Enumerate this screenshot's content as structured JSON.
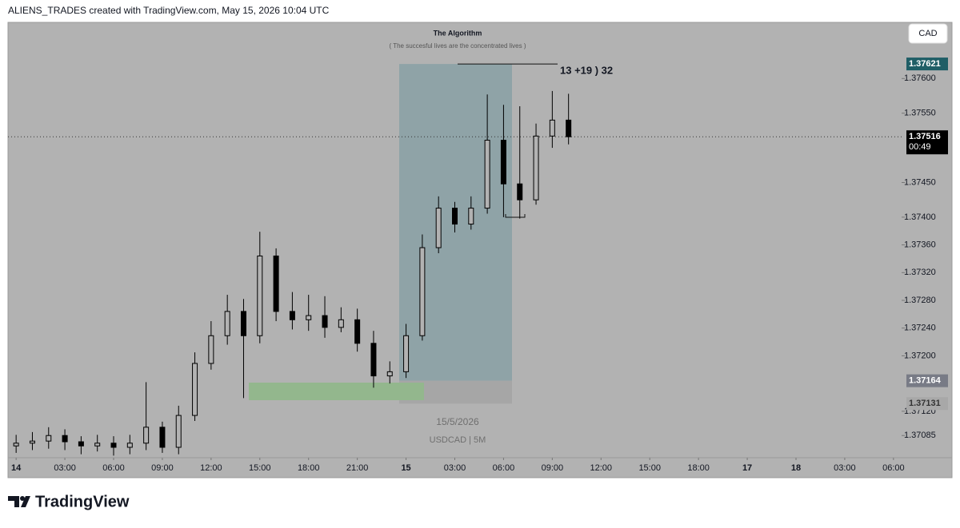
{
  "header": "ALIENS_TRADES created with TradingView.com, May 15, 2026 10:04 UTC",
  "currency": "CAD",
  "countdown": "00:49",
  "watermark": {
    "date": "15/5/2026",
    "symbol": "USDCAD | 5M"
  },
  "footer": {
    "brand": "TradingView"
  },
  "chart_data": {
    "type": "candlestick",
    "title": "The Algorithm",
    "subtitle": "( The succesful lives are the concentrated lives )",
    "annotation": "13 +19 ) 32",
    "color": "#000000",
    "x": [
      0,
      1,
      2,
      3,
      4,
      5,
      6,
      7,
      8,
      9,
      10,
      11,
      12,
      13,
      14,
      15,
      16,
      17,
      18,
      19,
      20,
      21,
      22,
      23,
      24,
      25,
      26,
      27,
      28,
      29,
      30,
      31,
      32,
      33,
      34
    ],
    "open": [
      1.3707,
      1.37074,
      1.37077,
      1.37085,
      1.37076,
      1.3707,
      1.37074,
      1.37068,
      1.37074,
      1.37097,
      1.37068,
      1.37114,
      1.37189,
      1.37229,
      1.37264,
      1.37229,
      1.37344,
      1.37264,
      1.37252,
      1.37258,
      1.37241,
      1.37252,
      1.37218,
      1.37171,
      1.37177,
      1.37229,
      1.37356,
      1.37413,
      1.3739,
      1.37413,
      1.37511,
      1.37448,
      1.37425,
      1.37517,
      1.3754
    ],
    "high": [
      1.37086,
      1.3709,
      1.37097,
      1.37094,
      1.37084,
      1.37086,
      1.37084,
      1.37086,
      1.37162,
      1.37105,
      1.37128,
      1.37205,
      1.3725,
      1.37288,
      1.37282,
      1.37379,
      1.37355,
      1.37292,
      1.37288,
      1.37286,
      1.3727,
      1.37268,
      1.37236,
      1.37192,
      1.37246,
      1.37375,
      1.3743,
      1.37422,
      1.3743,
      1.37577,
      1.37562,
      1.3756,
      1.37535,
      1.37582,
      1.37578
    ],
    "low": [
      1.3706,
      1.37064,
      1.37066,
      1.37064,
      1.37058,
      1.37062,
      1.37056,
      1.37058,
      1.37064,
      1.3706,
      1.37058,
      1.37106,
      1.3718,
      1.37216,
      1.37139,
      1.37218,
      1.3725,
      1.37238,
      1.37236,
      1.37226,
      1.37234,
      1.37206,
      1.37154,
      1.3716,
      1.37168,
      1.37222,
      1.37348,
      1.37378,
      1.37382,
      1.37405,
      1.374,
      1.37398,
      1.37418,
      1.375,
      1.37505
    ],
    "close": [
      1.37074,
      1.37077,
      1.37085,
      1.37076,
      1.3707,
      1.37074,
      1.37068,
      1.37074,
      1.37097,
      1.37068,
      1.37114,
      1.37189,
      1.37229,
      1.37264,
      1.37229,
      1.37344,
      1.37264,
      1.37252,
      1.37258,
      1.37241,
      1.37252,
      1.37218,
      1.37171,
      1.37177,
      1.37229,
      1.37356,
      1.37413,
      1.3739,
      1.37413,
      1.37511,
      1.37448,
      1.37425,
      1.37517,
      1.3754,
      1.37516
    ],
    "xlim": [
      -0.5,
      54.5
    ],
    "xticks": [
      {
        "value": 0,
        "label": "14"
      },
      {
        "value": 3,
        "label": "03:00"
      },
      {
        "value": 6,
        "label": "06:00"
      },
      {
        "value": 9,
        "label": "09:00"
      },
      {
        "value": 12,
        "label": "12:00"
      },
      {
        "value": 15,
        "label": "15:00"
      },
      {
        "value": 18,
        "label": "18:00"
      },
      {
        "value": 21,
        "label": "21:00"
      },
      {
        "value": 24,
        "label": "15"
      },
      {
        "value": 27,
        "label": "03:00"
      },
      {
        "value": 30,
        "label": "06:00"
      },
      {
        "value": 33,
        "label": "09:00"
      },
      {
        "value": 36,
        "label": "12:00"
      },
      {
        "value": 39,
        "label": "15:00"
      },
      {
        "value": 42,
        "label": "18:00"
      },
      {
        "value": 45,
        "label": "17"
      },
      {
        "value": 48,
        "label": "18"
      },
      {
        "value": 51,
        "label": "03:00"
      },
      {
        "value": 54,
        "label": "06:00"
      }
    ],
    "ylim": [
      1.37053,
      1.37681
    ],
    "yticks": [
      {
        "value": 1.376,
        "label": "1.37600"
      },
      {
        "value": 1.3755,
        "label": "1.37550"
      },
      {
        "value": 1.3745,
        "label": "1.37450"
      },
      {
        "value": 1.374,
        "label": "1.37400"
      },
      {
        "value": 1.3736,
        "label": "1.37360"
      },
      {
        "value": 1.3732,
        "label": "1.37320"
      },
      {
        "value": 1.3728,
        "label": "1.37280"
      },
      {
        "value": 1.3724,
        "label": "1.37240"
      },
      {
        "value": 1.372,
        "label": "1.37200"
      },
      {
        "value": 1.3712,
        "label": "1.37120"
      },
      1.37085
    ],
    "price_labels": [
      1.37621,
      1.37516,
      1.37164,
      1.37131
    ]
  }
}
